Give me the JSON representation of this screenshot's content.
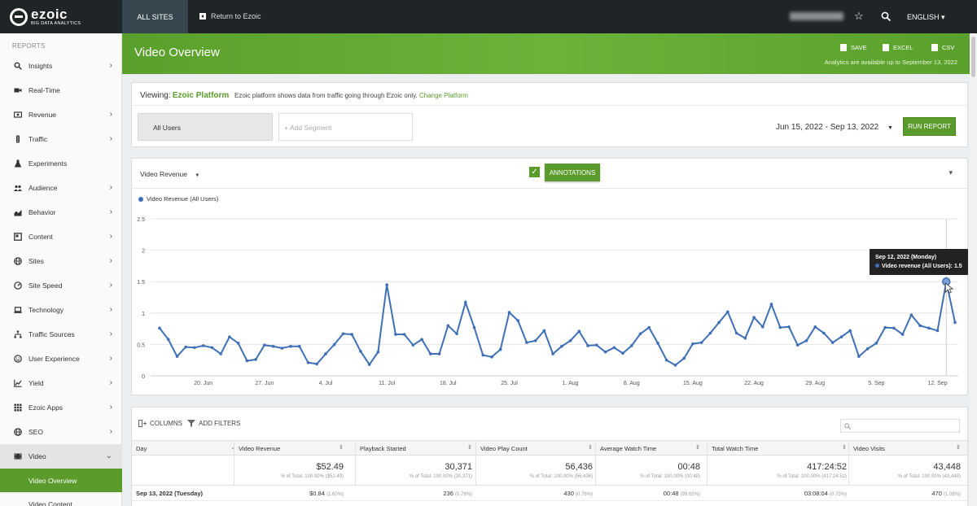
{
  "brand": {
    "name": "ezoic",
    "tagline": "BIG DATA ANALYTICS"
  },
  "topbar": {
    "tab_label": "ALL SITES",
    "return_label": "Return to Ezoic",
    "language": "ENGLISH ▾"
  },
  "sidebar": {
    "heading": "REPORTS",
    "items": [
      {
        "label": "Insights",
        "icon": "search-icon",
        "chevron": "›"
      },
      {
        "label": "Real-Time",
        "icon": "camera-icon",
        "chevron": ""
      },
      {
        "label": "Revenue",
        "icon": "money-icon",
        "chevron": "›"
      },
      {
        "label": "Traffic",
        "icon": "traffic-light-icon",
        "chevron": "›"
      },
      {
        "label": "Experiments",
        "icon": "flask-icon",
        "chevron": ""
      },
      {
        "label": "Audience",
        "icon": "people-icon",
        "chevron": "›"
      },
      {
        "label": "Behavior",
        "icon": "area-chart-icon",
        "chevron": "›"
      },
      {
        "label": "Content",
        "icon": "content-icon",
        "chevron": "›"
      },
      {
        "label": "Sites",
        "icon": "globe-icon",
        "chevron": "›"
      },
      {
        "label": "Site Speed",
        "icon": "speedometer-icon",
        "chevron": "›"
      },
      {
        "label": "Technology",
        "icon": "laptop-icon",
        "chevron": "›"
      },
      {
        "label": "Traffic Sources",
        "icon": "sitemap-icon",
        "chevron": "›"
      },
      {
        "label": "User Experience",
        "icon": "smiley-icon",
        "chevron": "›"
      },
      {
        "label": "Yield",
        "icon": "line-chart-icon",
        "chevron": "›"
      },
      {
        "label": "Ezoic Apps",
        "icon": "apps-grid-icon",
        "chevron": "›"
      },
      {
        "label": "SEO",
        "icon": "globe-icon",
        "chevron": "›"
      },
      {
        "label": "Video",
        "icon": "video-icon",
        "chevron": "⌄"
      }
    ],
    "sub_items": [
      {
        "label": "Video Overview",
        "active": true
      },
      {
        "label": "Video Content",
        "active": false
      }
    ]
  },
  "header": {
    "title": "Video Overview",
    "save_label": "SAVE",
    "excel_label": "EXCEL",
    "csv_label": "CSV",
    "note": "Analytics are available up to September 13, 2022"
  },
  "viewing": {
    "label": "Viewing:",
    "platform": "Ezoic Platform",
    "description": "Ezoic platform shows data from traffic going through Ezoic only.",
    "change_link": "Change Platform",
    "segment_all": "All Users",
    "segment_add": "+ Add Segment",
    "date_range": "Jun 15, 2022 - Sep 13, 2022",
    "run_label": "RUN REPORT"
  },
  "chart_controls": {
    "metric": "Video Revenue",
    "annotations_label": "ANNOTATIONS",
    "tooltip_date": "Sep 12, 2022 (Monday)",
    "tooltip_series": "Video revenue (All Users): 1.5"
  },
  "chart_data": {
    "type": "line",
    "title": "",
    "legend": "Video Revenue (All Users)",
    "ylim": [
      0,
      2.5
    ],
    "yticks": [
      "0",
      "0.5",
      "1",
      "1.5",
      "2",
      "2.5"
    ],
    "xticks": [
      "20. Jun",
      "27. Jun",
      "4. Jul",
      "11. Jul",
      "18. Jul",
      "25. Jul",
      "1. Aug",
      "8. Aug",
      "15. Aug",
      "22. Aug",
      "29. Aug",
      "5. Sep",
      "12. Sep"
    ],
    "series": [
      {
        "name": "Video Revenue (All Users)",
        "color": "#3f6fb6",
        "values": [
          0.76,
          0.58,
          0.31,
          0.46,
          0.45,
          0.48,
          0.45,
          0.35,
          0.62,
          0.52,
          0.24,
          0.26,
          0.49,
          0.47,
          0.44,
          0.47,
          0.47,
          0.21,
          0.19,
          0.35,
          0.5,
          0.67,
          0.66,
          0.39,
          0.18,
          0.38,
          1.45,
          0.66,
          0.66,
          0.49,
          0.58,
          0.35,
          0.35,
          0.8,
          0.67,
          1.17,
          0.77,
          0.33,
          0.3,
          0.42,
          1.01,
          0.88,
          0.53,
          0.56,
          0.72,
          0.35,
          0.47,
          0.56,
          0.71,
          0.48,
          0.49,
          0.38,
          0.45,
          0.36,
          0.48,
          0.67,
          0.77,
          0.52,
          0.25,
          0.17,
          0.28,
          0.51,
          0.53,
          0.68,
          0.85,
          1.02,
          0.68,
          0.6,
          0.93,
          0.78,
          1.14,
          0.77,
          0.78,
          0.49,
          0.56,
          0.78,
          0.68,
          0.53,
          0.62,
          0.72,
          0.31,
          0.43,
          0.52,
          0.77,
          0.76,
          0.66,
          0.97,
          0.8,
          0.76,
          0.72,
          1.5,
          0.85
        ]
      }
    ]
  },
  "table": {
    "columns_label": "COLUMNS",
    "filters_label": "ADD FILTERS",
    "headers": [
      "Day",
      "Video Revenue",
      "Playback Started",
      "Video Play Count",
      "Average Watch Time",
      "Total Watch Time",
      "Video Visits"
    ],
    "totals": [
      {
        "value": "$52.49",
        "sub": "% of Total: 100.00% ($52.49)"
      },
      {
        "value": "30,371",
        "sub": "% of Total: 100.00% (30,371)"
      },
      {
        "value": "56,436",
        "sub": "% of Total: 100.00% (56,436)"
      },
      {
        "value": "00:48",
        "sub": "% of Total: 100.00% (00:48)"
      },
      {
        "value": "417:24:52",
        "sub": "% of Total: 100.00% (417:24:52)"
      },
      {
        "value": "43,448",
        "sub": "% of Total: 100.00% (43,448)"
      }
    ],
    "rows": [
      {
        "day": "Sep 13, 2022 (Tuesday)",
        "cells": [
          {
            "v": "$0.84",
            "p": "(1.60%)"
          },
          {
            "v": "236",
            "p": "(0.78%)"
          },
          {
            "v": "430",
            "p": "(0.76%)"
          },
          {
            "v": "00:48",
            "p": "(99.65%)"
          },
          {
            "v": "03:08:04",
            "p": "(0.75%)"
          },
          {
            "v": "470",
            "p": "(1.08%)"
          }
        ]
      }
    ]
  }
}
